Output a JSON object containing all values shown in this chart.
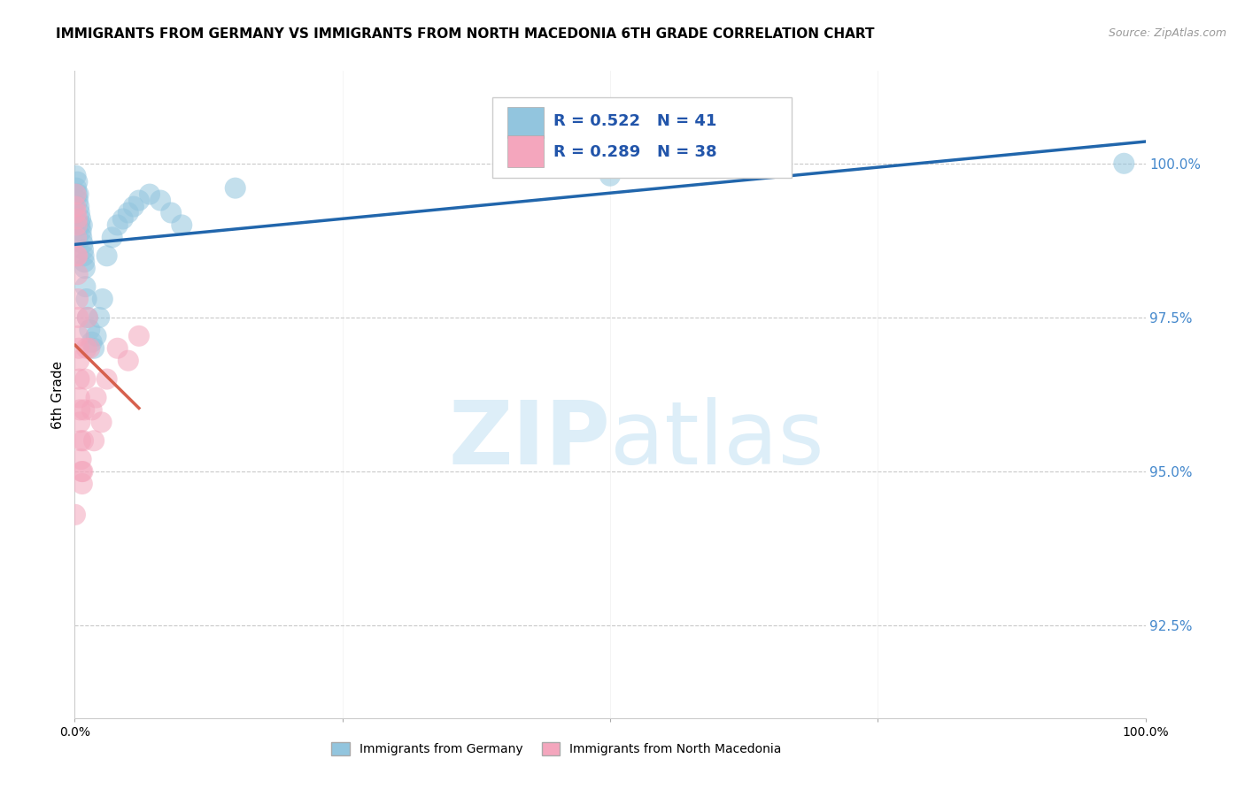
{
  "title": "IMMIGRANTS FROM GERMANY VS IMMIGRANTS FROM NORTH MACEDONIA 6TH GRADE CORRELATION CHART",
  "source": "Source: ZipAtlas.com",
  "ylabel": "6th Grade",
  "yticks": [
    92.5,
    95.0,
    97.5,
    100.0
  ],
  "ytick_labels": [
    "92.5%",
    "95.0%",
    "97.5%",
    "100.0%"
  ],
  "xlim": [
    0.0,
    100.0
  ],
  "ylim": [
    91.0,
    101.5
  ],
  "legend_R_blue": "R = 0.522",
  "legend_N_blue": "N = 41",
  "legend_R_pink": "R = 0.289",
  "legend_N_pink": "N = 38",
  "legend_label_blue": "Immigrants from Germany",
  "legend_label_pink": "Immigrants from North Macedonia",
  "blue_color": "#92c5de",
  "pink_color": "#f4a6bd",
  "blue_line_color": "#2166ac",
  "pink_line_color": "#d6604d",
  "watermark_zip": "ZIP",
  "watermark_atlas": "atlas",
  "watermark_color": "#ddeef8",
  "background_color": "#ffffff",
  "title_fontsize": 11,
  "source_fontsize": 9,
  "blue_scatter_x": [
    0.1,
    0.15,
    0.2,
    0.25,
    0.3,
    0.35,
    0.4,
    0.45,
    0.5,
    0.55,
    0.6,
    0.65,
    0.7,
    0.75,
    0.8,
    0.85,
    0.9,
    0.95,
    1.0,
    1.1,
    1.2,
    1.4,
    1.6,
    1.8,
    2.0,
    2.3,
    2.6,
    3.0,
    3.5,
    4.0,
    4.5,
    5.0,
    5.5,
    6.0,
    7.0,
    8.0,
    9.0,
    10.0,
    15.0,
    50.0,
    98.0
  ],
  "blue_scatter_y": [
    99.8,
    99.6,
    99.5,
    99.7,
    99.4,
    99.5,
    99.3,
    99.2,
    99.0,
    99.1,
    98.9,
    98.8,
    99.0,
    98.7,
    98.6,
    98.5,
    98.4,
    98.3,
    98.0,
    97.8,
    97.5,
    97.3,
    97.1,
    97.0,
    97.2,
    97.5,
    97.8,
    98.5,
    98.8,
    99.0,
    99.1,
    99.2,
    99.3,
    99.4,
    99.5,
    99.4,
    99.2,
    99.0,
    99.6,
    99.8,
    100.0
  ],
  "pink_scatter_x": [
    0.05,
    0.08,
    0.1,
    0.12,
    0.15,
    0.18,
    0.2,
    0.22,
    0.25,
    0.28,
    0.3,
    0.32,
    0.35,
    0.38,
    0.4,
    0.42,
    0.45,
    0.48,
    0.5,
    0.55,
    0.6,
    0.65,
    0.7,
    0.75,
    0.8,
    0.9,
    1.0,
    1.1,
    1.2,
    1.4,
    1.6,
    1.8,
    2.0,
    2.5,
    3.0,
    4.0,
    5.0,
    6.0
  ],
  "pink_scatter_y": [
    94.3,
    99.3,
    99.5,
    99.2,
    98.8,
    98.5,
    99.0,
    99.1,
    98.5,
    98.2,
    97.8,
    97.5,
    97.2,
    97.0,
    96.8,
    96.5,
    96.2,
    96.0,
    95.8,
    95.5,
    95.2,
    95.0,
    94.8,
    95.0,
    95.5,
    96.0,
    96.5,
    97.0,
    97.5,
    97.0,
    96.0,
    95.5,
    96.2,
    95.8,
    96.5,
    97.0,
    96.8,
    97.2
  ]
}
